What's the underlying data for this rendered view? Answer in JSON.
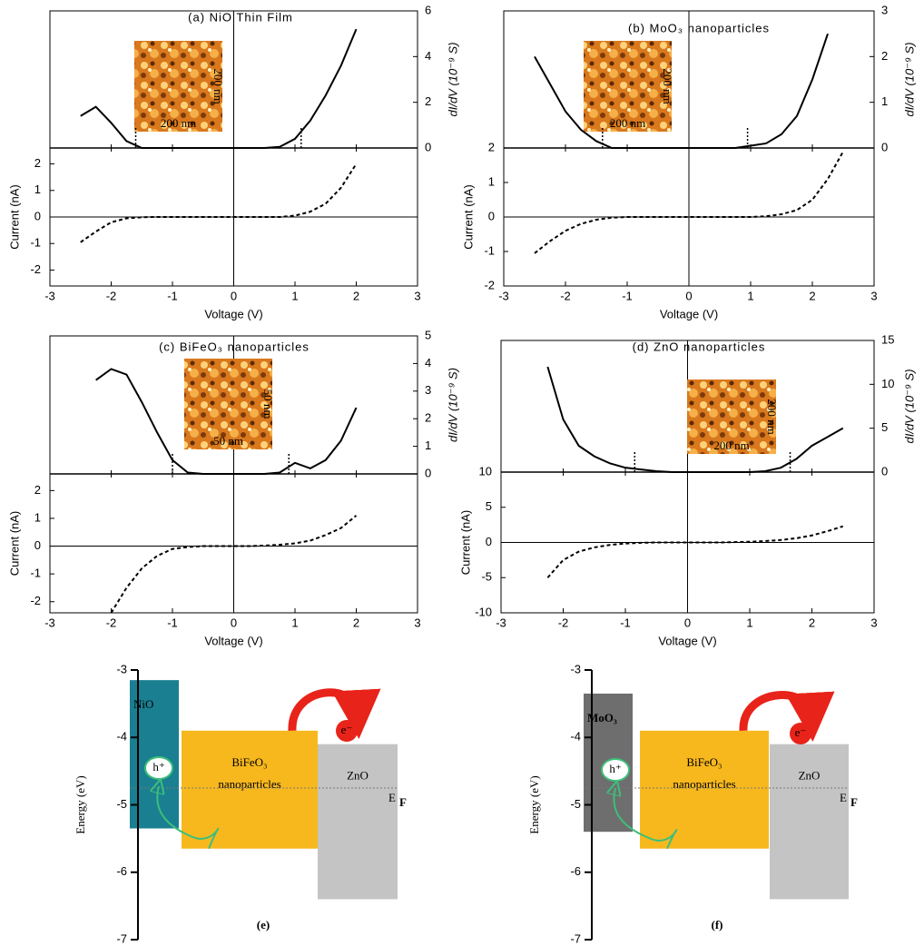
{
  "chart_data": [
    {
      "type": "sts",
      "title": "(a) NiO Thin Film",
      "x_label": "Voltage (V)",
      "y_label": "Current (nA)",
      "y2_label": "dI/dV (10⁻⁹ S)",
      "x": [
        -2.5,
        -2.25,
        -2,
        -1.75,
        -1.5,
        -1.25,
        -1,
        -0.75,
        -0.5,
        -0.25,
        0,
        0.25,
        0.5,
        0.75,
        1,
        1.25,
        1.5,
        1.75,
        2,
        2.25,
        2.5
      ],
      "xlim": [
        -3,
        3
      ],
      "xticks": [
        -3,
        -2,
        -1,
        0,
        1,
        2,
        3
      ],
      "ylim": [
        -2.6,
        2.6
      ],
      "yticks": [
        -2,
        -1,
        0,
        1,
        2
      ],
      "y2lim": [
        0,
        6
      ],
      "y2ticks": [
        0,
        2,
        4,
        6
      ],
      "series": [
        {
          "axis": "y2",
          "style": "solid",
          "color": "#000000",
          "values": [
            1.4,
            1.8,
            1.1,
            0.3,
            0,
            0,
            0,
            0,
            0,
            0,
            0,
            0,
            0,
            0.05,
            0.4,
            1.2,
            2.3,
            3.6,
            5.2,
            null,
            null
          ]
        },
        {
          "style": "dashed",
          "color": "#000000",
          "values": [
            -0.95,
            -0.55,
            -0.2,
            -0.05,
            -0.01,
            0,
            0,
            0,
            0,
            0,
            0,
            0,
            0,
            0,
            0.05,
            0.2,
            0.5,
            1.1,
            2.0,
            null,
            null
          ]
        }
      ],
      "band_edges": [
        -1.6,
        1.1
      ],
      "inset_labels": [
        "200 nm",
        "200 nm"
      ]
    },
    {
      "type": "sts",
      "title": "(b) MoO₃ nanoparticles",
      "x_label": "Voltage (V)",
      "y_label": "Current (nA)",
      "y2_label": "dI/dV (10⁻⁹ S)",
      "x": [
        -2.5,
        -2.25,
        -2,
        -1.75,
        -1.5,
        -1.25,
        -1,
        -0.75,
        -0.5,
        -0.25,
        0,
        0.25,
        0.5,
        0.75,
        1,
        1.25,
        1.5,
        1.75,
        2,
        2.25,
        2.5
      ],
      "xlim": [
        -3,
        3
      ],
      "xticks": [
        -3,
        -2,
        -1,
        0,
        1,
        2,
        3
      ],
      "ylim": [
        -2,
        2
      ],
      "yticks": [
        -2,
        -1,
        0,
        1,
        2
      ],
      "y2lim": [
        0,
        3
      ],
      "y2ticks": [
        0,
        1,
        2,
        3
      ],
      "series": [
        {
          "axis": "y2",
          "style": "solid",
          "color": "#000000",
          "values": [
            2.0,
            1.4,
            0.8,
            0.4,
            0.15,
            0,
            0,
            0,
            0,
            0,
            0,
            0,
            0,
            0,
            0.05,
            0.1,
            0.3,
            0.7,
            1.5,
            2.5,
            null
          ]
        },
        {
          "style": "dashed",
          "color": "#000000",
          "values": [
            -1.05,
            -0.7,
            -0.4,
            -0.2,
            -0.08,
            -0.02,
            0,
            0,
            0,
            0,
            0,
            0,
            0,
            0,
            0,
            0.02,
            0.08,
            0.2,
            0.5,
            1.1,
            1.9
          ]
        }
      ],
      "band_edges": [
        -1.4,
        0.95
      ],
      "inset_labels": [
        "200 nm",
        "200 nm"
      ]
    },
    {
      "type": "sts",
      "title": "(c) BiFeO₃ nanoparticles",
      "x_label": "Voltage (V)",
      "y_label": "Current (nA)",
      "y2_label": "dI/dV (10⁻⁹ S)",
      "x": [
        -2.5,
        -2.25,
        -2,
        -1.75,
        -1.5,
        -1.25,
        -1,
        -0.75,
        -0.5,
        -0.25,
        0,
        0.25,
        0.5,
        0.75,
        1,
        1.25,
        1.5,
        1.75,
        2,
        2.25,
        2.5
      ],
      "xlim": [
        -3,
        3
      ],
      "xticks": [
        -3,
        -2,
        -1,
        0,
        1,
        2,
        3
      ],
      "ylim": [
        -2.4,
        2.6
      ],
      "yticks": [
        -2,
        -1,
        0,
        1,
        2
      ],
      "y2lim": [
        0,
        5
      ],
      "y2ticks": [
        0,
        1,
        2,
        3,
        4,
        5
      ],
      "series": [
        {
          "axis": "y2",
          "style": "solid",
          "color": "#000000",
          "values": [
            null,
            3.4,
            3.8,
            3.6,
            2.6,
            1.5,
            0.5,
            0.05,
            0,
            0,
            0,
            0,
            0,
            0.05,
            0.4,
            0.2,
            0.5,
            1.2,
            2.4,
            null,
            null
          ]
        },
        {
          "style": "dashed",
          "color": "#000000",
          "values": [
            null,
            null,
            -2.4,
            -1.5,
            -0.8,
            -0.35,
            -0.1,
            -0.03,
            0,
            0,
            0,
            0,
            0.02,
            0.05,
            0.1,
            0.2,
            0.4,
            0.65,
            1.1,
            null,
            null
          ]
        }
      ],
      "band_edges": [
        -1.0,
        0.9
      ],
      "inset_labels": [
        "50 nm",
        "50 nm"
      ]
    },
    {
      "type": "sts",
      "title": "(d) ZnO nanoparticles",
      "x_label": "Voltage (V)",
      "y_label": "Current (nA)",
      "y2_label": "dI/dV (10⁻⁹ S)",
      "x": [
        -2.5,
        -2.25,
        -2,
        -1.75,
        -1.5,
        -1.25,
        -1,
        -0.75,
        -0.5,
        -0.25,
        0,
        0.25,
        0.5,
        0.75,
        1,
        1.25,
        1.5,
        1.75,
        2,
        2.25,
        2.5
      ],
      "xlim": [
        -3,
        3
      ],
      "xticks": [
        -3,
        -2,
        -1,
        0,
        1,
        2,
        3
      ],
      "ylim": [
        -10,
        10
      ],
      "yticks": [
        -10,
        -5,
        0,
        5,
        10
      ],
      "y2lim": [
        0,
        15
      ],
      "y2ticks": [
        0,
        5,
        10,
        15
      ],
      "series": [
        {
          "axis": "y2",
          "style": "solid",
          "color": "#000000",
          "values": [
            null,
            12,
            6,
            3,
            1.8,
            1,
            0.5,
            0.3,
            0.1,
            0,
            0,
            0,
            0,
            0,
            0,
            0.1,
            0.5,
            1.5,
            3,
            4,
            5
          ]
        },
        {
          "style": "dashed",
          "color": "#000000",
          "values": [
            null,
            -5,
            -2.5,
            -1.3,
            -0.7,
            -0.35,
            -0.15,
            -0.05,
            0,
            0,
            0,
            0,
            0,
            0.05,
            0.1,
            0.2,
            0.35,
            0.6,
            1.0,
            1.6,
            2.3
          ]
        }
      ],
      "band_edges": [
        -0.85,
        1.65
      ],
      "inset_labels": [
        "200 nm",
        "200 nm"
      ]
    },
    {
      "type": "band",
      "title": "(e)",
      "y_label": "Energy (eV)",
      "ylim": [
        -7,
        -3
      ],
      "yticks": [
        -3,
        -4,
        -5,
        -6,
        -7
      ],
      "bars": [
        {
          "label": [
            "NiO"
          ],
          "top": -3.15,
          "bottom": -5.35,
          "color": "#1a7f91"
        },
        {
          "label": [
            "BiFeO₃",
            "nanoparticles"
          ],
          "top": -3.9,
          "bottom": -5.65,
          "color": "#f7b81e"
        },
        {
          "label": [
            "ZnO"
          ],
          "top": -4.1,
          "bottom": -6.4,
          "color": "#c4c4c4"
        }
      ],
      "fermi": {
        "label": "E",
        "sub": "F",
        "value": -4.75
      },
      "electron": "e⁻",
      "hole": "h⁺"
    },
    {
      "type": "band",
      "title": "(f)",
      "y_label": "Energy (eV)",
      "ylim": [
        -7,
        -3
      ],
      "yticks": [
        -3,
        -4,
        -5,
        -6,
        -7
      ],
      "bars": [
        {
          "label": [
            "MoO₃"
          ],
          "top": -3.35,
          "bottom": -5.4,
          "color": "#6e6e6e"
        },
        {
          "label": [
            "BiFeO₃",
            "nanoparticles"
          ],
          "top": -3.9,
          "bottom": -5.65,
          "color": "#f7b81e"
        },
        {
          "label": [
            "ZnO"
          ],
          "top": -4.1,
          "bottom": -6.4,
          "color": "#c4c4c4"
        }
      ],
      "fermi": {
        "label": "E",
        "sub": "F",
        "value": -4.75
      },
      "electron": "e⁻",
      "hole": "h⁺"
    }
  ]
}
